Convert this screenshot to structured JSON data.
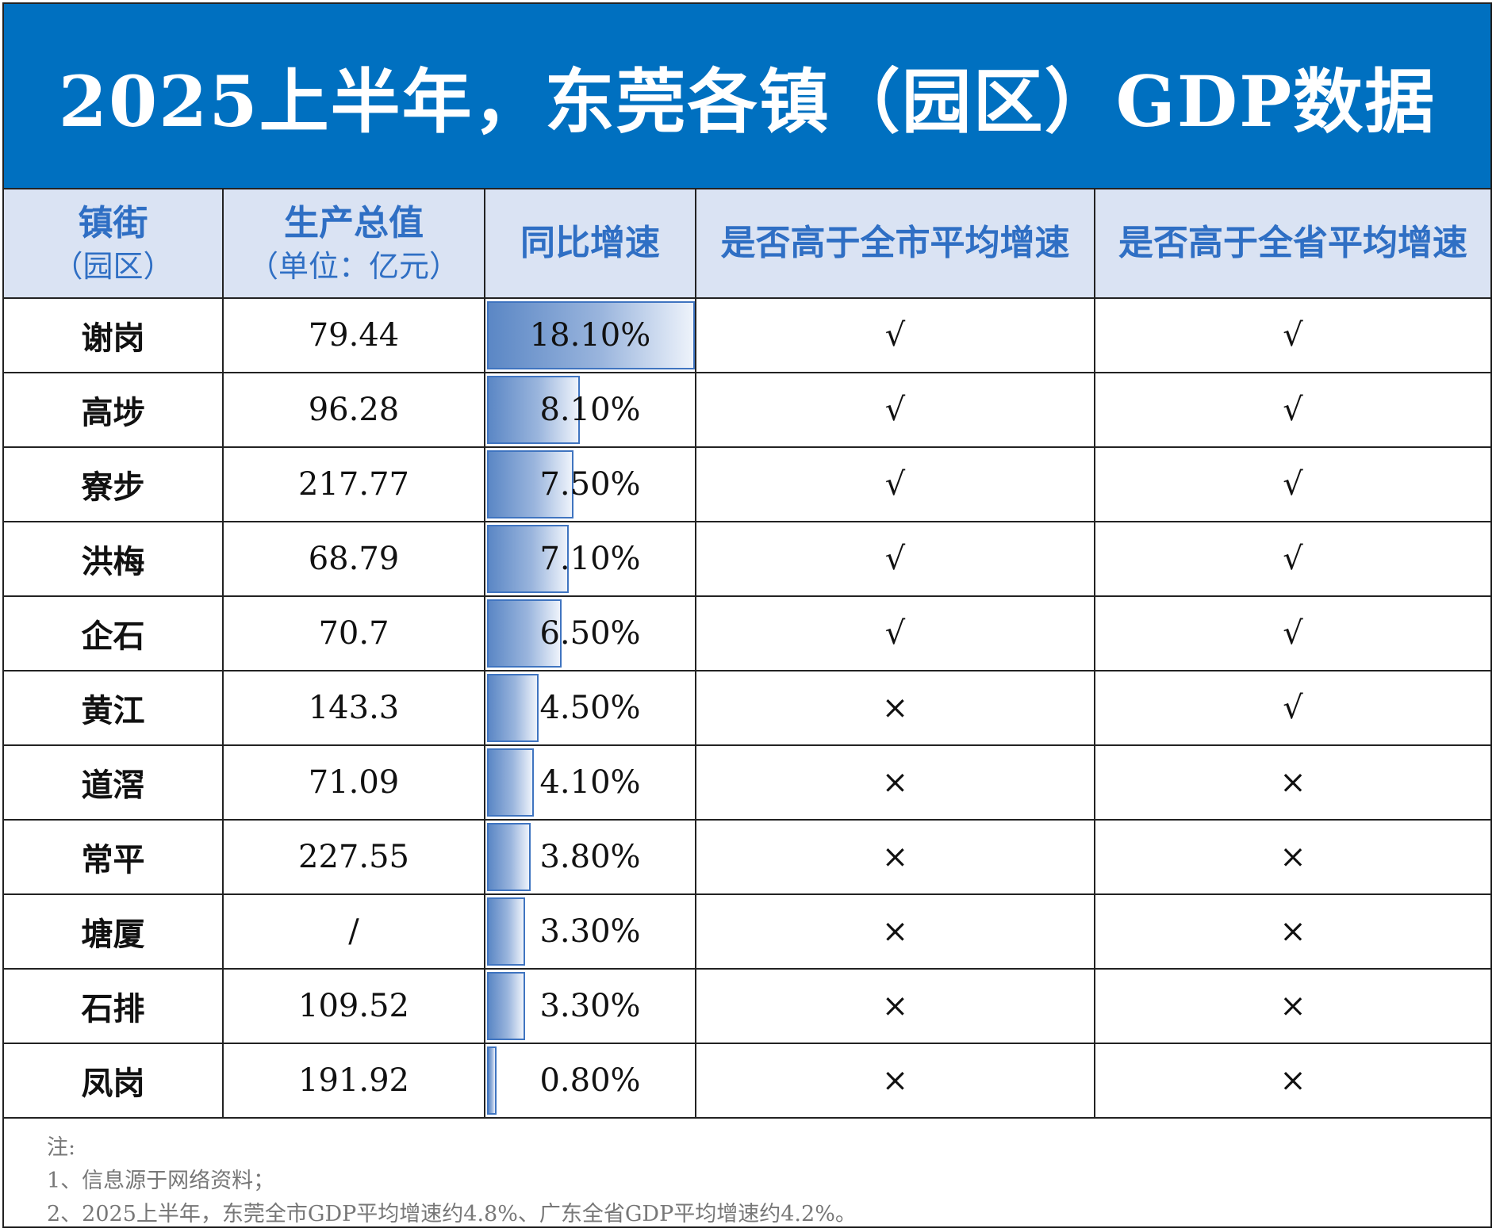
{
  "title": "2025上半年，东莞各镇（园区）GDP数据",
  "headers": {
    "town_line1": "镇街",
    "town_line2": "（园区）",
    "gdp_line1": "生产总值",
    "gdp_line2": "（单位：亿元）",
    "growth": "同比增速",
    "above_city": "是否高于全市平均增速",
    "above_province": "是否高于全省平均增速"
  },
  "colors": {
    "banner": "#0070c0",
    "header_bg": "#dae3f3",
    "header_text": "#2f6fc4",
    "bar_fill": "#5b87c5"
  },
  "growth_scale_max": 18.1,
  "rows": [
    {
      "town": "谢岗",
      "gdp": "79.44",
      "growth": "18.10%",
      "growth_value": 18.1,
      "above_city": "√",
      "above_province": "√"
    },
    {
      "town": "高埗",
      "gdp": "96.28",
      "growth": "8.10%",
      "growth_value": 8.1,
      "above_city": "√",
      "above_province": "√"
    },
    {
      "town": "寮步",
      "gdp": "217.77",
      "growth": "7.50%",
      "growth_value": 7.5,
      "above_city": "√",
      "above_province": "√"
    },
    {
      "town": "洪梅",
      "gdp": "68.79",
      "growth": "7.10%",
      "growth_value": 7.1,
      "above_city": "√",
      "above_province": "√"
    },
    {
      "town": "企石",
      "gdp": "70.7",
      "growth": "6.50%",
      "growth_value": 6.5,
      "above_city": "√",
      "above_province": "√"
    },
    {
      "town": "黄江",
      "gdp": "143.3",
      "growth": "4.50%",
      "growth_value": 4.5,
      "above_city": "×",
      "above_province": "√"
    },
    {
      "town": "道滘",
      "gdp": "71.09",
      "growth": "4.10%",
      "growth_value": 4.1,
      "above_city": "×",
      "above_province": "×"
    },
    {
      "town": "常平",
      "gdp": "227.55",
      "growth": "3.80%",
      "growth_value": 3.8,
      "above_city": "×",
      "above_province": "×"
    },
    {
      "town": "塘厦",
      "gdp": "/",
      "growth": "3.30%",
      "growth_value": 3.3,
      "above_city": "×",
      "above_province": "×"
    },
    {
      "town": "石排",
      "gdp": "109.52",
      "growth": "3.30%",
      "growth_value": 3.3,
      "above_city": "×",
      "above_province": "×"
    },
    {
      "town": "凤岗",
      "gdp": "191.92",
      "growth": "0.80%",
      "growth_value": 0.8,
      "above_city": "×",
      "above_province": "×"
    }
  ],
  "notes": {
    "heading": "注:",
    "line1": "1、信息源于网络资料；",
    "line2": "2、2025上半年，东莞全市GDP平均增速约4.8%、广东全省GDP平均增速约4.2%。"
  }
}
